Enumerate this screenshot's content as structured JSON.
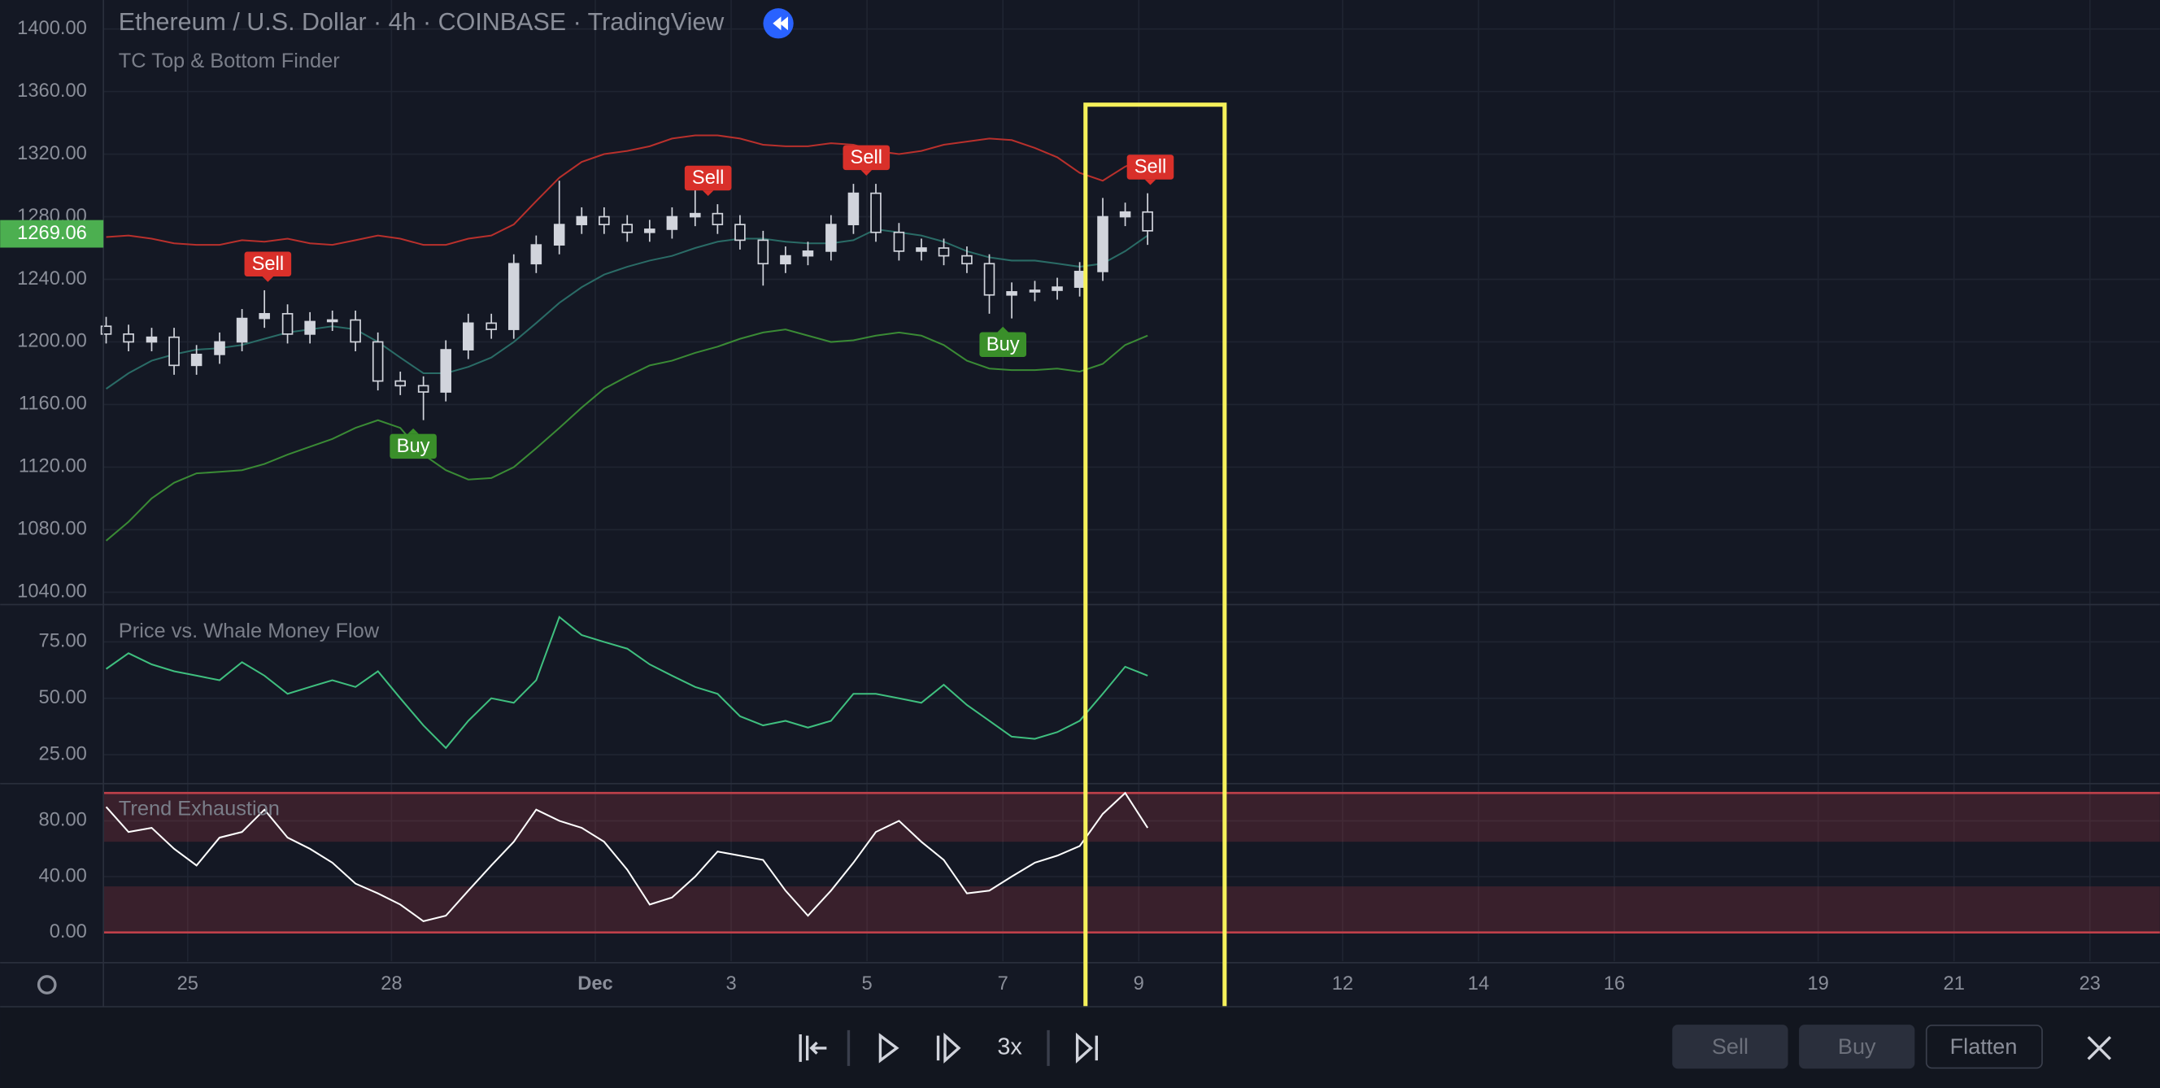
{
  "header": {
    "title": "Ethereum / U.S. Dollar · 4h · COINBASE · TradingView",
    "indicator": "TC Top & Bottom Finder"
  },
  "toolbar": {
    "speed": "3x",
    "buttons": [
      "Sell",
      "Buy",
      "Flatten"
    ]
  },
  "chart_data": [
    {
      "type": "candlestick",
      "title": "TC Top & Bottom Finder",
      "x": [
        23.8,
        24.13,
        24.47,
        24.8,
        25.13,
        25.47,
        25.8,
        26.13,
        26.47,
        26.8,
        27.13,
        27.47,
        27.8,
        28.13,
        28.47,
        28.8,
        29.13,
        29.47,
        29.8,
        30.13,
        30.47,
        30.8,
        31.13,
        31.47,
        31.8,
        32.13,
        32.47,
        32.8,
        33.13,
        33.47,
        33.8,
        34.13,
        34.47,
        34.8,
        35.13,
        35.47,
        35.8,
        36.13,
        36.47,
        36.8,
        37.13,
        37.47,
        37.8,
        38.13,
        38.47,
        38.8,
        39.13
      ],
      "open": [
        1210,
        1205,
        1200,
        1203,
        1185,
        1192,
        1200,
        1215,
        1218,
        1205,
        1213,
        1214,
        1200,
        1175,
        1172,
        1168,
        1195,
        1212,
        1208,
        1250,
        1262,
        1275,
        1280,
        1275,
        1270,
        1272,
        1280,
        1282,
        1275,
        1265,
        1250,
        1255,
        1258,
        1275,
        1295,
        1270,
        1258,
        1260,
        1255,
        1250,
        1230,
        1232,
        1233,
        1235,
        1245,
        1280,
        1283
      ],
      "high": [
        1216,
        1211,
        1209,
        1209,
        1198,
        1206,
        1221,
        1233,
        1224,
        1219,
        1220,
        1220,
        1206,
        1181,
        1178,
        1201,
        1218,
        1218,
        1256,
        1268,
        1303,
        1286,
        1286,
        1281,
        1278,
        1286,
        1310,
        1288,
        1281,
        1271,
        1261,
        1264,
        1281,
        1301,
        1301,
        1276,
        1266,
        1266,
        1261,
        1256,
        1238,
        1239,
        1241,
        1251,
        1292,
        1289,
        1295
      ],
      "low": [
        1199,
        1194,
        1194,
        1179,
        1179,
        1186,
        1194,
        1209,
        1199,
        1199,
        1207,
        1194,
        1169,
        1166,
        1150,
        1162,
        1189,
        1202,
        1202,
        1244,
        1256,
        1269,
        1269,
        1264,
        1264,
        1266,
        1274,
        1269,
        1259,
        1236,
        1244,
        1249,
        1252,
        1269,
        1264,
        1252,
        1252,
        1249,
        1244,
        1218,
        1215,
        1226,
        1227,
        1229,
        1239,
        1274,
        1262
      ],
      "close": [
        1205,
        1200,
        1203,
        1185,
        1192,
        1200,
        1215,
        1218,
        1205,
        1213,
        1214,
        1200,
        1175,
        1172,
        1168,
        1195,
        1212,
        1208,
        1250,
        1262,
        1275,
        1280,
        1275,
        1270,
        1272,
        1280,
        1282,
        1275,
        1265,
        1250,
        1255,
        1258,
        1275,
        1295,
        1270,
        1258,
        1260,
        1255,
        1250,
        1230,
        1232,
        1233,
        1235,
        1245,
        1280,
        1283,
        1271
      ],
      "up_color": "#d1d4dc",
      "down_color": "#d1d4dc",
      "series": [
        {
          "name": "Upper",
          "color": "#b8302c",
          "values": [
            1267,
            1268,
            1266,
            1263,
            1262,
            1262,
            1265,
            1264,
            1266,
            1263,
            1262,
            1265,
            1268,
            1266,
            1262,
            1262,
            1266,
            1268,
            1275,
            1290,
            1305,
            1315,
            1320,
            1322,
            1325,
            1330,
            1332,
            1332,
            1330,
            1326,
            1325,
            1325,
            1327,
            1326,
            1322,
            1320,
            1322,
            1326,
            1328,
            1330,
            1329,
            1324,
            1318,
            1308,
            1303,
            1312,
            1318
          ]
        },
        {
          "name": "Basis",
          "color": "#2a6b66",
          "values": [
            1170,
            1180,
            1188,
            1192,
            1195,
            1196,
            1198,
            1202,
            1206,
            1208,
            1210,
            1208,
            1200,
            1190,
            1180,
            1180,
            1184,
            1190,
            1200,
            1212,
            1225,
            1235,
            1243,
            1248,
            1252,
            1255,
            1260,
            1264,
            1266,
            1266,
            1264,
            1263,
            1263,
            1265,
            1272,
            1270,
            1268,
            1264,
            1258,
            1254,
            1252,
            1252,
            1250,
            1248,
            1250,
            1258,
            1268
          ]
        },
        {
          "name": "Lower",
          "color": "#3a8a35",
          "values": [
            1073,
            1085,
            1100,
            1110,
            1116,
            1117,
            1118,
            1122,
            1128,
            1133,
            1138,
            1145,
            1150,
            1145,
            1128,
            1118,
            1112,
            1113,
            1120,
            1132,
            1145,
            1158,
            1170,
            1178,
            1185,
            1188,
            1193,
            1197,
            1202,
            1206,
            1208,
            1204,
            1200,
            1201,
            1204,
            1206,
            1204,
            1198,
            1188,
            1183,
            1182,
            1182,
            1183,
            1181,
            1186,
            1198,
            1204
          ]
        }
      ],
      "signals": [
        {
          "label": "Sell",
          "x": 26.18,
          "position": "above",
          "color": "#d9302a"
        },
        {
          "label": "Buy",
          "x": 28.32,
          "position": "below",
          "color": "#3a8f2a"
        },
        {
          "label": "Sell",
          "x": 32.66,
          "position": "above",
          "color": "#d9302a"
        },
        {
          "label": "Sell",
          "x": 34.99,
          "position": "above",
          "color": "#d9302a"
        },
        {
          "label": "Buy",
          "x": 37.0,
          "position": "below",
          "color": "#3a8f2a"
        },
        {
          "label": "Sell",
          "x": 39.17,
          "position": "above",
          "color": "#d9302a"
        }
      ],
      "last_price": 1269.06,
      "last_price_color": "#4caf50",
      "xlim": [
        23.76,
        54.03
      ],
      "ylim": [
        1033,
        1418.5
      ],
      "yticks": [
        {
          "value": 1040,
          "label": "1040.00"
        },
        {
          "value": 1080,
          "label": "1080.00"
        },
        {
          "value": 1120,
          "label": "1120.00"
        },
        {
          "value": 1160,
          "label": "1160.00"
        },
        {
          "value": 1200,
          "label": "1200.00"
        },
        {
          "value": 1240,
          "label": "1240.00"
        },
        {
          "value": 1280,
          "label": "1280.00"
        },
        {
          "value": 1320,
          "label": "1320.00"
        },
        {
          "value": 1360,
          "label": "1360.00"
        },
        {
          "value": 1400,
          "label": "1400.00"
        }
      ],
      "grid": true
    },
    {
      "type": "line",
      "title": "Price vs. Whale Money Flow",
      "series": [
        {
          "name": "Whale Money Flow",
          "color": "#3fbf7f",
          "values": [
            63,
            70,
            65,
            62,
            60,
            58,
            66,
            60,
            52,
            55,
            58,
            55,
            62,
            50,
            38,
            28,
            40,
            50,
            48,
            58,
            86,
            78,
            75,
            72,
            65,
            60,
            55,
            52,
            42,
            38,
            40,
            37,
            40,
            52,
            52,
            50,
            48,
            56,
            47,
            40,
            33,
            32,
            35,
            40,
            52,
            64,
            60
          ]
        }
      ],
      "xlim": [
        23.76,
        54.03
      ],
      "ylim": [
        12.8,
        90.9
      ],
      "yticks": [
        {
          "value": 25,
          "label": "25.00"
        },
        {
          "value": 50,
          "label": "50.00"
        },
        {
          "value": 75,
          "label": "75.00"
        }
      ],
      "grid": true
    },
    {
      "type": "line",
      "title": "Trend Exhaustion",
      "series": [
        {
          "name": "Trend Exhaustion",
          "color": "#ffffff",
          "values": [
            90,
            72,
            75,
            60,
            48,
            68,
            72,
            88,
            68,
            60,
            50,
            35,
            28,
            20,
            8,
            12,
            30,
            48,
            65,
            88,
            80,
            75,
            65,
            45,
            20,
            25,
            40,
            58,
            55,
            52,
            30,
            12,
            30,
            50,
            72,
            80,
            65,
            52,
            28,
            30,
            40,
            50,
            55,
            62,
            85,
            100,
            75
          ]
        }
      ],
      "zones": [
        [
          65,
          100
        ],
        [
          0,
          33
        ]
      ],
      "zone_lines": [
        100,
        0
      ],
      "zone_color": "#c0404a",
      "xlim": [
        23.76,
        54.03
      ],
      "ylim": [
        -20.7,
        105.7
      ],
      "yticks": [
        {
          "value": 0,
          "label": "0.00"
        },
        {
          "value": 40,
          "label": "40.00"
        },
        {
          "value": 80,
          "label": "80.00"
        }
      ],
      "xticks": [
        25,
        28,
        {
          "value": 31,
          "label": "Dec"
        },
        {
          "value": 33,
          "label": "3"
        },
        {
          "value": 35,
          "label": "5"
        },
        {
          "value": 37,
          "label": "7"
        },
        {
          "value": 39,
          "label": "9"
        },
        {
          "value": 42,
          "label": "12"
        },
        {
          "value": 44,
          "label": "14"
        },
        {
          "value": 46,
          "label": "16"
        },
        {
          "value": 49,
          "label": "19"
        },
        {
          "value": 51,
          "label": "21"
        },
        {
          "value": 53,
          "label": "23"
        }
      ],
      "grid": true
    }
  ]
}
